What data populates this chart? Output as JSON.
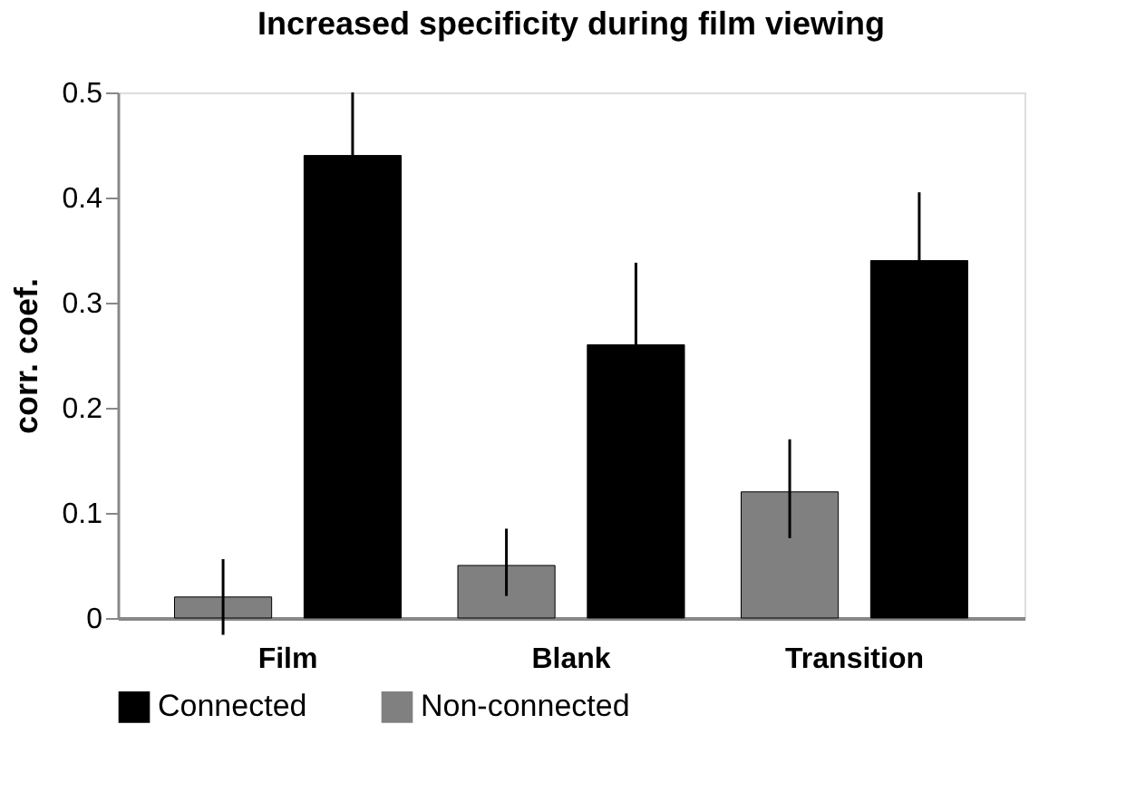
{
  "chart_data": {
    "type": "bar",
    "title": "Increased specificity during film viewing",
    "ylabel": "corr. coef.",
    "categories": [
      "Film",
      "Blank",
      "Transition"
    ],
    "series": [
      {
        "name": "Non-connected",
        "color": "#808080",
        "values": [
          0.02,
          0.05,
          0.12
        ],
        "errors": [
          [
            -0.016,
            0.056
          ],
          [
            0.021,
            0.085
          ],
          [
            0.076,
            0.17
          ]
        ]
      },
      {
        "name": "Connected",
        "color": "#000000",
        "values": [
          0.44,
          0.26,
          0.34
        ],
        "errors": [
          [
            0.44,
            0.5
          ],
          [
            0.26,
            0.338
          ],
          [
            0.34,
            0.405
          ]
        ]
      }
    ],
    "ylim": [
      0,
      0.5
    ],
    "yticks": [
      0,
      0.1,
      0.2,
      0.3,
      0.4,
      0.5
    ],
    "grid": false,
    "legend": "bottom"
  }
}
